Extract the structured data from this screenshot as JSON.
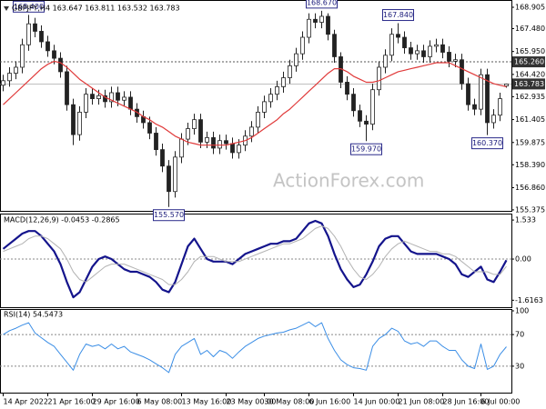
{
  "chart_data": [
    {
      "type": "candlestick",
      "title": "GBPJPY,H4 163.647 163.811 163.532 163.783",
      "watermark": "ActionForex.com",
      "categories": [
        "14 Apr 2022",
        null,
        null,
        null,
        null,
        null,
        null,
        "21 Apr 16:00",
        null,
        null,
        null,
        null,
        null,
        null,
        "29 Apr 16:00",
        null,
        null,
        null,
        null,
        null,
        null,
        "6 May 08:00",
        null,
        null,
        null,
        null,
        null,
        null,
        "13 May 16:00",
        null,
        null,
        null,
        null,
        null,
        null,
        "23 May 00:00",
        null,
        null,
        null,
        null,
        null,
        "30 May 08:00",
        null,
        null,
        null,
        null,
        null,
        null,
        "6 Jun 16:00",
        null,
        null,
        null,
        null,
        null,
        null,
        "14 Jun 00:00",
        null,
        null,
        null,
        null,
        null,
        null,
        "21 Jun 08:00",
        null,
        null,
        null,
        null,
        null,
        null,
        "28 Jun 16:00",
        null,
        null,
        null,
        null,
        null,
        "6 Jul 00:00",
        null,
        null,
        null,
        null
      ],
      "open": [
        163.7,
        164.0,
        164.5,
        164.9,
        166.4,
        167.8,
        167.3,
        166.6,
        166.0,
        165.5,
        164.6,
        162.4,
        160.4,
        161.9,
        163.1,
        162.8,
        163.0,
        162.6,
        163.2,
        162.7,
        162.9,
        162.1,
        161.6,
        161.2,
        160.5,
        159.4,
        158.3,
        156.6,
        158.9,
        160.1,
        160.8,
        161.4,
        159.9,
        160.2,
        159.5,
        160.0,
        159.8,
        159.2,
        159.7,
        160.3,
        160.9,
        161.9,
        162.6,
        163.1,
        163.6,
        164.2,
        165.0,
        165.8,
        166.9,
        168.1,
        167.9,
        168.3,
        167.1,
        165.6,
        163.9,
        163.1,
        162.0,
        161.3,
        161.1,
        163.4,
        164.9,
        165.7,
        167.1,
        166.9,
        166.2,
        165.8,
        166.0,
        165.6,
        166.3,
        166.4,
        165.9,
        165.3,
        165.4,
        163.8,
        162.4,
        162.1,
        164.4,
        161.2,
        161.7,
        163.647
      ],
      "high": [
        164.4,
        164.9,
        165.3,
        166.8,
        168.4,
        168.2,
        167.7,
        167.0,
        166.4,
        165.9,
        165.0,
        162.8,
        162.3,
        163.5,
        163.5,
        163.4,
        163.4,
        163.6,
        163.6,
        163.3,
        163.3,
        162.5,
        162.0,
        161.6,
        160.9,
        159.8,
        158.7,
        159.3,
        160.5,
        161.2,
        161.8,
        161.8,
        160.6,
        160.6,
        160.4,
        160.4,
        160.2,
        160.1,
        160.7,
        161.3,
        162.3,
        163.0,
        163.5,
        164.0,
        164.6,
        165.4,
        166.2,
        167.3,
        168.5,
        168.5,
        168.67,
        168.5,
        167.4,
        165.9,
        164.3,
        163.5,
        162.4,
        161.7,
        163.8,
        165.3,
        166.1,
        167.5,
        167.84,
        167.3,
        166.6,
        166.4,
        166.4,
        166.7,
        166.8,
        166.8,
        166.3,
        165.8,
        165.8,
        164.2,
        162.8,
        164.8,
        164.8,
        162.1,
        163.2,
        163.811
      ],
      "low": [
        163.3,
        163.6,
        164.1,
        164.5,
        166.0,
        166.9,
        166.2,
        165.6,
        165.1,
        164.2,
        162.0,
        159.7,
        160.0,
        161.5,
        162.4,
        162.4,
        162.2,
        162.2,
        162.3,
        162.3,
        161.7,
        161.2,
        160.8,
        160.1,
        159.0,
        157.9,
        155.57,
        156.2,
        158.5,
        159.7,
        160.4,
        159.5,
        159.5,
        159.1,
        159.1,
        159.4,
        158.8,
        158.8,
        159.3,
        159.9,
        160.5,
        161.5,
        162.2,
        162.7,
        163.2,
        163.8,
        164.6,
        165.4,
        166.5,
        167.5,
        167.5,
        166.7,
        165.2,
        163.5,
        162.7,
        161.6,
        160.9,
        159.97,
        160.7,
        163.0,
        164.5,
        165.3,
        166.5,
        165.8,
        165.4,
        165.4,
        165.2,
        165.2,
        165.9,
        165.5,
        164.9,
        164.9,
        163.4,
        162.0,
        161.7,
        161.7,
        160.37,
        160.8,
        161.3,
        163.532
      ],
      "close": [
        164.0,
        164.5,
        164.9,
        166.4,
        167.8,
        167.3,
        166.6,
        166.0,
        165.5,
        164.6,
        162.4,
        160.4,
        161.9,
        163.1,
        162.8,
        163.0,
        162.6,
        163.2,
        162.7,
        162.9,
        162.1,
        161.6,
        161.2,
        160.5,
        159.4,
        158.3,
        156.6,
        158.9,
        160.1,
        160.8,
        161.4,
        159.9,
        160.2,
        159.5,
        160.0,
        159.8,
        159.2,
        159.7,
        160.3,
        160.9,
        161.9,
        162.6,
        163.1,
        163.6,
        164.2,
        165.0,
        165.8,
        166.9,
        168.1,
        167.9,
        168.3,
        167.1,
        165.6,
        163.9,
        163.1,
        162.0,
        161.3,
        161.1,
        163.4,
        164.9,
        165.7,
        167.1,
        166.9,
        166.2,
        165.8,
        166.0,
        165.6,
        166.3,
        166.4,
        165.9,
        165.3,
        165.4,
        163.8,
        162.4,
        162.1,
        164.4,
        161.2,
        161.7,
        162.8,
        163.783
      ],
      "high_labels": [
        null,
        null,
        null,
        null,
        "168.400",
        null,
        null,
        null,
        null,
        null,
        null,
        null,
        null,
        null,
        null,
        null,
        null,
        null,
        null,
        null,
        null,
        null,
        null,
        null,
        null,
        null,
        null,
        null,
        null,
        null,
        null,
        null,
        null,
        null,
        null,
        null,
        null,
        null,
        null,
        null,
        null,
        null,
        null,
        null,
        null,
        null,
        null,
        null,
        null,
        null,
        "168.670",
        null,
        null,
        null,
        null,
        null,
        null,
        null,
        null,
        null,
        null,
        null,
        "167.840",
        null,
        null,
        null,
        null,
        null,
        null,
        null,
        null,
        null,
        null,
        null,
        null,
        null,
        null,
        null,
        null,
        null
      ],
      "low_labels": [
        null,
        null,
        null,
        null,
        null,
        null,
        null,
        null,
        null,
        null,
        null,
        null,
        null,
        null,
        null,
        null,
        null,
        null,
        null,
        null,
        null,
        null,
        null,
        null,
        null,
        null,
        "155.570",
        null,
        null,
        null,
        null,
        null,
        null,
        null,
        null,
        null,
        null,
        null,
        null,
        null,
        null,
        null,
        null,
        null,
        null,
        null,
        null,
        null,
        null,
        null,
        null,
        null,
        null,
        null,
        null,
        null,
        null,
        "159.970",
        null,
        null,
        null,
        null,
        null,
        null,
        null,
        null,
        null,
        null,
        null,
        null,
        null,
        null,
        null,
        null,
        null,
        null,
        "160.370",
        null,
        null,
        null
      ],
      "series": [
        {
          "color": "#e03a3a",
          "values": [
            162.4,
            162.8,
            163.2,
            163.6,
            164.0,
            164.4,
            164.8,
            165.1,
            165.3,
            165.2,
            164.9,
            164.5,
            164.1,
            163.8,
            163.5,
            163.2,
            162.9,
            162.7,
            162.5,
            162.3,
            162.1,
            161.9,
            161.6,
            161.4,
            161.1,
            160.9,
            160.6,
            160.3,
            160.1,
            159.9,
            159.8,
            159.7,
            159.7,
            159.7,
            159.7,
            159.7,
            159.8,
            159.9,
            160.0,
            160.2,
            160.5,
            160.8,
            161.1,
            161.4,
            161.8,
            162.1,
            162.5,
            162.9,
            163.3,
            163.7,
            164.1,
            164.5,
            164.8,
            164.8,
            164.6,
            164.3,
            164.1,
            163.9,
            163.9,
            164.0,
            164.2,
            164.4,
            164.6,
            164.7,
            164.8,
            164.9,
            165.0,
            165.1,
            165.2,
            165.2,
            165.2,
            165.0,
            164.8,
            164.6,
            164.4,
            164.2,
            164.0,
            163.8,
            163.7,
            163.6
          ]
        }
      ],
      "level": {
        "value": 165.26,
        "label": "165.260"
      },
      "candle_color": "#222222",
      "ylim": [
        155.31,
        169.39
      ],
      "yticks": [
        168.905,
        {
          "value": 167.48,
          "label": "167.480"
        },
        {
          "value": 165.95,
          "label": "165.950"
        },
        {
          "value": 164.42,
          "label": "164.420"
        },
        162.935,
        161.405,
        159.875,
        {
          "value": 158.39,
          "label": "158.390"
        },
        {
          "value": 156.86,
          "label": "156.860"
        },
        155.375
      ]
    },
    {
      "type": "line",
      "title": "MACD(12,26,9) -0.0453 -0.2865",
      "series": [
        {
          "color": "#14148c",
          "width": 2.2,
          "values": [
            0.4,
            0.6,
            0.8,
            1.0,
            1.1,
            1.1,
            0.9,
            0.6,
            0.3,
            -0.2,
            -0.9,
            -1.5,
            -1.3,
            -0.8,
            -0.3,
            0.0,
            0.1,
            0.0,
            -0.2,
            -0.4,
            -0.5,
            -0.5,
            -0.6,
            -0.7,
            -0.9,
            -1.2,
            -1.3,
            -0.9,
            -0.2,
            0.5,
            0.8,
            0.4,
            0.0,
            -0.1,
            -0.1,
            -0.1,
            -0.2,
            0.0,
            0.2,
            0.3,
            0.4,
            0.5,
            0.6,
            0.6,
            0.7,
            0.7,
            0.8,
            1.1,
            1.4,
            1.5,
            1.4,
            0.9,
            0.2,
            -0.4,
            -0.8,
            -1.1,
            -1.0,
            -0.6,
            -0.1,
            0.5,
            0.8,
            0.9,
            0.9,
            0.6,
            0.3,
            0.2,
            0.2,
            0.2,
            0.2,
            0.1,
            0.0,
            -0.2,
            -0.6,
            -0.7,
            -0.5,
            -0.3,
            -0.8,
            -0.9,
            -0.5,
            -0.0453
          ]
        },
        {
          "color": "#b4b4b4",
          "width": 1,
          "values": [
            0.3,
            0.4,
            0.5,
            0.6,
            0.8,
            0.9,
            0.9,
            0.8,
            0.6,
            0.4,
            0.0,
            -0.5,
            -0.8,
            -0.9,
            -0.7,
            -0.5,
            -0.3,
            -0.2,
            -0.2,
            -0.2,
            -0.3,
            -0.4,
            -0.5,
            -0.6,
            -0.7,
            -0.8,
            -1.0,
            -1.0,
            -0.8,
            -0.5,
            -0.1,
            0.1,
            0.1,
            0.1,
            0.0,
            -0.1,
            -0.1,
            -0.1,
            0.0,
            0.1,
            0.2,
            0.3,
            0.4,
            0.5,
            0.6,
            0.6,
            0.7,
            0.8,
            1.0,
            1.2,
            1.3,
            1.2,
            0.9,
            0.5,
            0.0,
            -0.4,
            -0.7,
            -0.8,
            -0.6,
            -0.3,
            0.1,
            0.4,
            0.6,
            0.7,
            0.6,
            0.5,
            0.4,
            0.3,
            0.3,
            0.2,
            0.2,
            0.1,
            -0.1,
            -0.3,
            -0.5,
            -0.5,
            -0.5,
            -0.6,
            -0.6,
            -0.2865
          ]
        }
      ],
      "levels": [
        0
      ],
      "ylim": [
        -1.89,
        1.75
      ],
      "yticks": [
        1.533,
        {
          "value": 0,
          "label": "0.00"
        },
        -1.6163
      ]
    },
    {
      "type": "line",
      "title": "RSI(14) 54.5473",
      "series": [
        {
          "color": "#3b8ee6",
          "width": 1,
          "values": [
            70,
            75,
            78,
            82,
            85,
            72,
            66,
            60,
            55,
            45,
            35,
            25,
            45,
            58,
            55,
            57,
            52,
            58,
            52,
            55,
            48,
            45,
            42,
            38,
            33,
            28,
            22,
            45,
            55,
            60,
            65,
            45,
            50,
            42,
            50,
            47,
            40,
            48,
            55,
            60,
            65,
            68,
            70,
            72,
            73,
            76,
            78,
            82,
            86,
            80,
            85,
            65,
            50,
            38,
            32,
            28,
            27,
            25,
            55,
            65,
            70,
            78,
            74,
            62,
            58,
            60,
            55,
            62,
            62,
            55,
            50,
            50,
            38,
            30,
            27,
            58,
            26,
            30,
            45,
            54.5473
          ]
        }
      ],
      "levels": [
        70,
        30
      ],
      "ylim": [
        0,
        100
      ],
      "yticks": [
        100,
        70,
        30
      ]
    }
  ]
}
